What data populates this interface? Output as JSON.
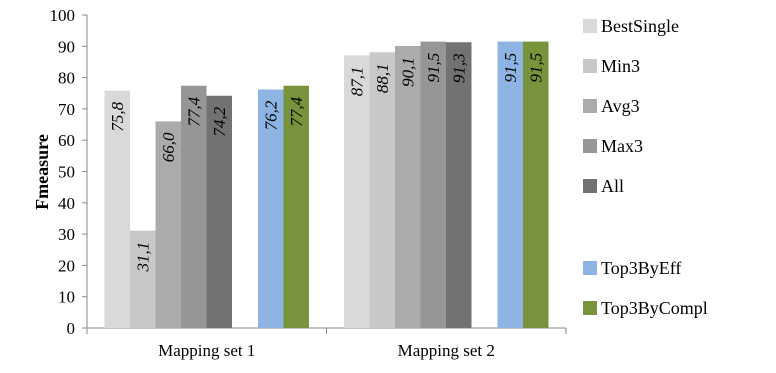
{
  "chart_data": {
    "type": "bar",
    "title": "",
    "xlabel": "",
    "ylabel": "Fmeasure",
    "ylim": [
      0,
      100
    ],
    "yticks": [
      0,
      10,
      20,
      30,
      40,
      50,
      60,
      70,
      80,
      90,
      100
    ],
    "grid": false,
    "legend_position": "right",
    "categories": [
      "Mapping set 1",
      "Mapping set 2"
    ],
    "series": [
      {
        "name": "BestSingle",
        "color": "#d9d9d9",
        "values": [
          75.8,
          87.1
        ],
        "labels": [
          "75,8",
          "87,1"
        ]
      },
      {
        "name": "Min3",
        "color": "#c8c8c8",
        "values": [
          31.1,
          88.1
        ],
        "labels": [
          "31,1",
          "88,1"
        ]
      },
      {
        "name": "Avg3",
        "color": "#ababab",
        "values": [
          66.0,
          90.1
        ],
        "labels": [
          "66,0",
          "90,1"
        ]
      },
      {
        "name": "Max3",
        "color": "#969696",
        "values": [
          77.4,
          91.5
        ],
        "labels": [
          "77,4",
          "91,5"
        ]
      },
      {
        "name": "All",
        "color": "#727272",
        "values": [
          74.2,
          91.3
        ],
        "labels": [
          "74,2",
          "91,3"
        ]
      },
      {
        "name": "Top3ByEff",
        "color": "#8eb4e3",
        "values": [
          76.2,
          91.5
        ],
        "labels": [
          "76,2",
          "91,5"
        ],
        "gap_before": true
      },
      {
        "name": "Top3ByCompl",
        "color": "#77933c",
        "values": [
          77.4,
          91.5
        ],
        "labels": [
          "77,4",
          "91,5"
        ]
      }
    ]
  }
}
